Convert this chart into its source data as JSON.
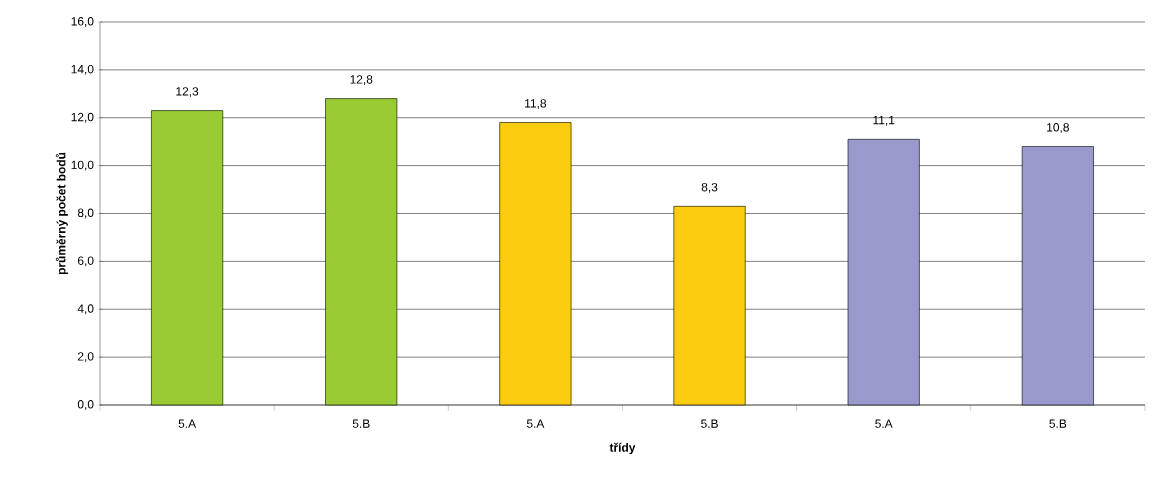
{
  "chart_data": {
    "type": "bar",
    "xlabel": "třídy",
    "ylabel": "průměrný počet bodů",
    "categories": [
      "5.A",
      "5.B",
      "5.A",
      "5.B",
      "5.A",
      "5.B"
    ],
    "values": [
      12.3,
      12.8,
      11.8,
      8.3,
      11.1,
      10.8
    ],
    "value_labels": [
      "12,3",
      "12,8",
      "11,8",
      "8,3",
      "11,1",
      "10,8"
    ],
    "colors": [
      "#99cc33",
      "#99cc33",
      "#fccc0f",
      "#fccc0f",
      "#9999cc",
      "#9999cc"
    ],
    "ylim": [
      0,
      16
    ],
    "yticks": [
      {
        "value": 0,
        "label": "0,0"
      },
      {
        "value": 2,
        "label": "2,0"
      },
      {
        "value": 4,
        "label": "4,0"
      },
      {
        "value": 6,
        "label": "6,0"
      },
      {
        "value": 8,
        "label": "8,0"
      },
      {
        "value": 10,
        "label": "10,0"
      },
      {
        "value": 12,
        "label": "12,0"
      },
      {
        "value": 14,
        "label": "14,0"
      },
      {
        "value": 16,
        "label": "16,0"
      }
    ],
    "grid": "y"
  }
}
